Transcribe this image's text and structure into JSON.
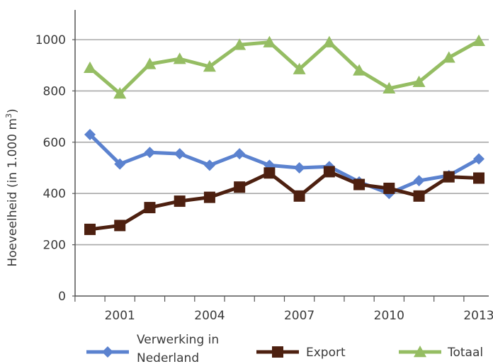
{
  "chart_data": {
    "type": "line",
    "xlabel": "",
    "ylabel": "Hoeveelheid (in 1.000  m",
    "ylabel_sup": "3",
    "ylabel_close": ")",
    "ylim": [
      0,
      1000
    ],
    "yticks": [
      "0",
      "200",
      "400",
      "600",
      "800",
      "1000"
    ],
    "x": [
      2000,
      2001,
      2002,
      2003,
      2004,
      2005,
      2006,
      2007,
      2008,
      2009,
      2010,
      2011,
      2012,
      2013
    ],
    "xtick_labels": [
      "2001",
      "2004",
      "2007",
      "2010",
      "2013"
    ],
    "grid": true,
    "legend_position": "bottom",
    "series": [
      {
        "name": "Verwerking in Nederland",
        "legend_line1": "Verwerking in",
        "legend_line2": "Nederland",
        "color": "#5b82cf",
        "marker": "diamond",
        "values": [
          630,
          515,
          560,
          555,
          510,
          555,
          510,
          500,
          505,
          445,
          400,
          450,
          470,
          535
        ]
      },
      {
        "name": "Export",
        "color": "#4d2010",
        "marker": "square",
        "values": [
          260,
          275,
          345,
          370,
          385,
          425,
          480,
          390,
          485,
          435,
          420,
          390,
          465,
          460
        ]
      },
      {
        "name": "Totaal",
        "color": "#95bd63",
        "marker": "triangle",
        "values": [
          890,
          790,
          905,
          925,
          895,
          980,
          990,
          885,
          990,
          880,
          810,
          835,
          930,
          995
        ]
      }
    ]
  }
}
